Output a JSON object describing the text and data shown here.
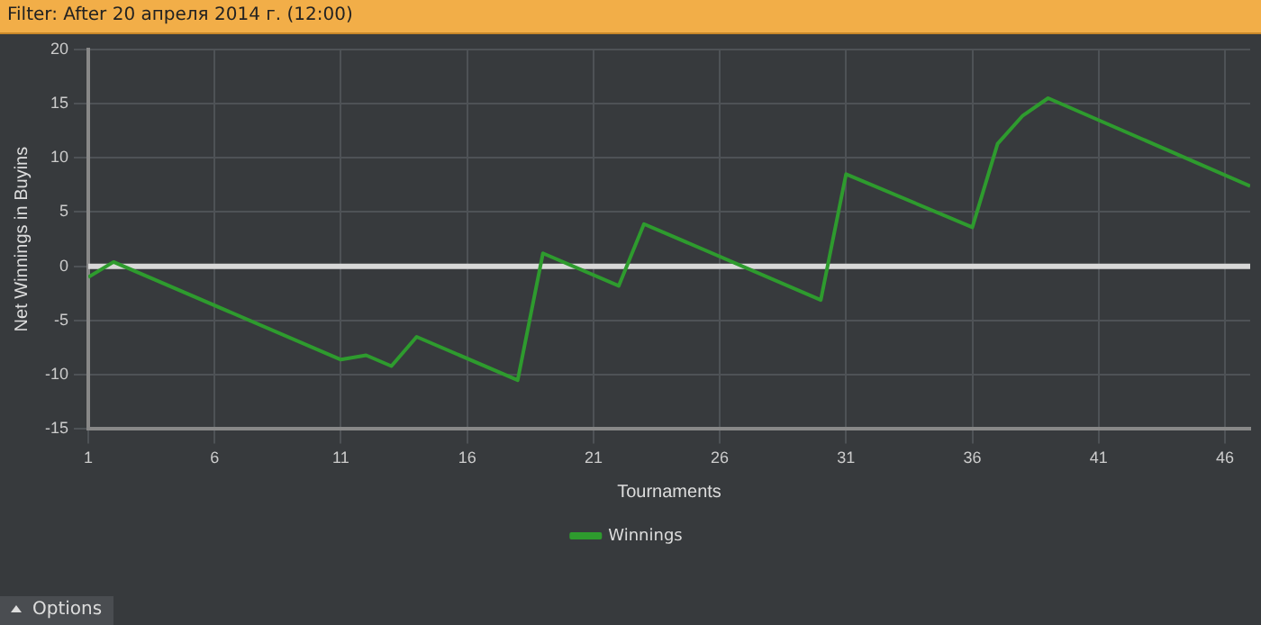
{
  "chart_data": {
    "type": "line",
    "title": "Filter: After 20 апреля 2014 г. (12:00)",
    "xlabel": "Tournaments",
    "ylabel": "Net Winnings in Buyins",
    "x": [
      1,
      2,
      11,
      12,
      13,
      14,
      18,
      19,
      22,
      23,
      30,
      31,
      36,
      37,
      38,
      39,
      47
    ],
    "series": [
      {
        "name": "Winnings",
        "color": "#2e9b2e",
        "values": [
          -1,
          0.4,
          -8.6,
          -8.2,
          -9.2,
          -6.5,
          -10.5,
          1.2,
          -1.8,
          3.9,
          -3.1,
          8.5,
          3.6,
          11.3,
          13.9,
          15.5,
          7.4
        ]
      }
    ],
    "xlim": [
      1,
      47
    ],
    "xticks": [
      1,
      6,
      11,
      16,
      21,
      26,
      31,
      36,
      41,
      46
    ],
    "ylim": [
      -15,
      20
    ],
    "yticks": [
      -15,
      -10,
      -5,
      0,
      5,
      10,
      15,
      20
    ],
    "ref_lines": [
      {
        "axis": "y",
        "value": 0,
        "color": "#d8d8d8"
      }
    ],
    "grid": true,
    "legend": "bottom",
    "marker": "none",
    "line_style": "solid",
    "annotations": [
      "Options"
    ]
  }
}
